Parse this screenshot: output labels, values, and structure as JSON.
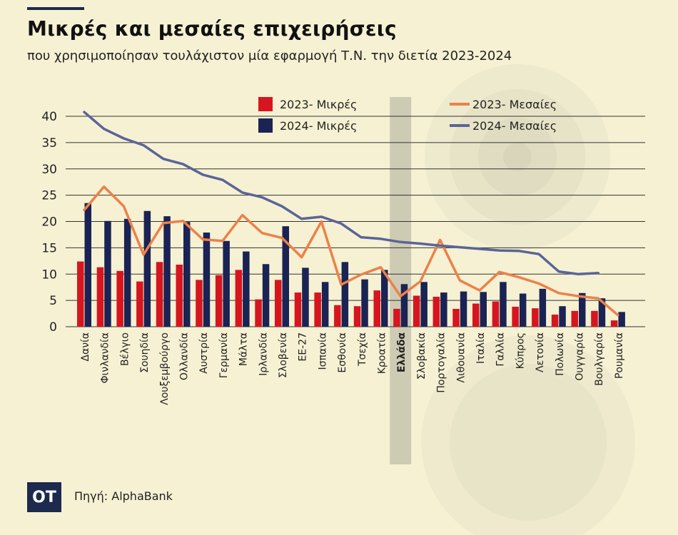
{
  "header": {
    "title": "Μικρές και μεσαίες επιχειρήσεις",
    "subtitle": "που χρησιμοποίησαν τουλάχιστον μία εφαρμογή Τ.Ν. την διετία 2023-2024"
  },
  "footer": {
    "logo": "ΟΤ",
    "source": "Πηγή: AlphaBank"
  },
  "colors": {
    "bar2023": "#d7151f",
    "bar2024": "#1a2354",
    "line2023": "#ec8149",
    "line2024": "#5a6499",
    "highlight": "#c7c4ae",
    "grid": "#333333"
  },
  "chart_data": {
    "type": "bar",
    "ylim": [
      0,
      40
    ],
    "yticks": [
      0,
      5,
      10,
      15,
      20,
      25,
      30,
      35,
      40
    ],
    "grid": true,
    "legend_position": "top",
    "highlight_category": "Ελλάδα",
    "categories": [
      "Δανία",
      "Φινλανδία",
      "Βέλγιο",
      "Σουηδία",
      "Λουξεμβούργο",
      "Ολλανδία",
      "Αυστρία",
      "Γερμανία",
      "Μάλτα",
      "Ιρλανδία",
      "Σλοβενία",
      "ΕΕ-27",
      "Ισπανία",
      "Εσθονία",
      "Τσεχία",
      "Κροατία",
      "Ελλάδα",
      "Σλοβακία",
      "Πορτογαλία",
      "Λιθουανία",
      "Ιταλία",
      "Γαλλία",
      "Κύπρος",
      "Λετονία",
      "Πολωνία",
      "Ουγγαρία",
      "Βουλγαρία",
      "Ρουμανία"
    ],
    "series": [
      {
        "name": "2023- Μικρές",
        "type": "bar",
        "values": [
          12.4,
          11.3,
          10.6,
          8.6,
          12.3,
          11.8,
          8.9,
          9.8,
          10.8,
          5.2,
          8.9,
          6.5,
          6.5,
          4.1,
          3.9,
          6.9,
          3.4,
          5.9,
          5.7,
          3.4,
          4.4,
          4.8,
          3.8,
          3.5,
          2.3,
          3.0,
          3.0,
          1.2
        ]
      },
      {
        "name": "2024- Μικρές",
        "type": "bar",
        "values": [
          23.5,
          20.1,
          20.5,
          22.0,
          21.0,
          19.9,
          17.9,
          16.3,
          14.3,
          11.9,
          19.1,
          11.2,
          8.5,
          12.3,
          9.0,
          10.8,
          8.1,
          8.5,
          6.5,
          6.7,
          6.6,
          8.5,
          6.3,
          7.2,
          3.9,
          6.4,
          5.4,
          2.8
        ]
      },
      {
        "name": "2023- Μεσαίες",
        "type": "line",
        "values": [
          22.2,
          26.6,
          22.9,
          13.7,
          19.7,
          20.1,
          16.6,
          16.3,
          21.2,
          17.8,
          16.9,
          13.2,
          20.0,
          8.0,
          9.9,
          11.3,
          5.8,
          8.6,
          16.5,
          8.8,
          6.9,
          10.4,
          9.4,
          8.2,
          6.4,
          5.8,
          5.4,
          2.2
        ]
      },
      {
        "name": "2024- Μεσαίες",
        "type": "line",
        "values": [
          40.8,
          37.6,
          35.8,
          34.5,
          31.9,
          30.9,
          28.9,
          27.9,
          25.5,
          24.6,
          22.9,
          20.5,
          20.9,
          19.6,
          17.0,
          16.7,
          16.1,
          15.8,
          15.4,
          15.1,
          14.8,
          14.5,
          14.4,
          13.8,
          10.5,
          10.0,
          10.2,
          null
        ]
      }
    ]
  }
}
